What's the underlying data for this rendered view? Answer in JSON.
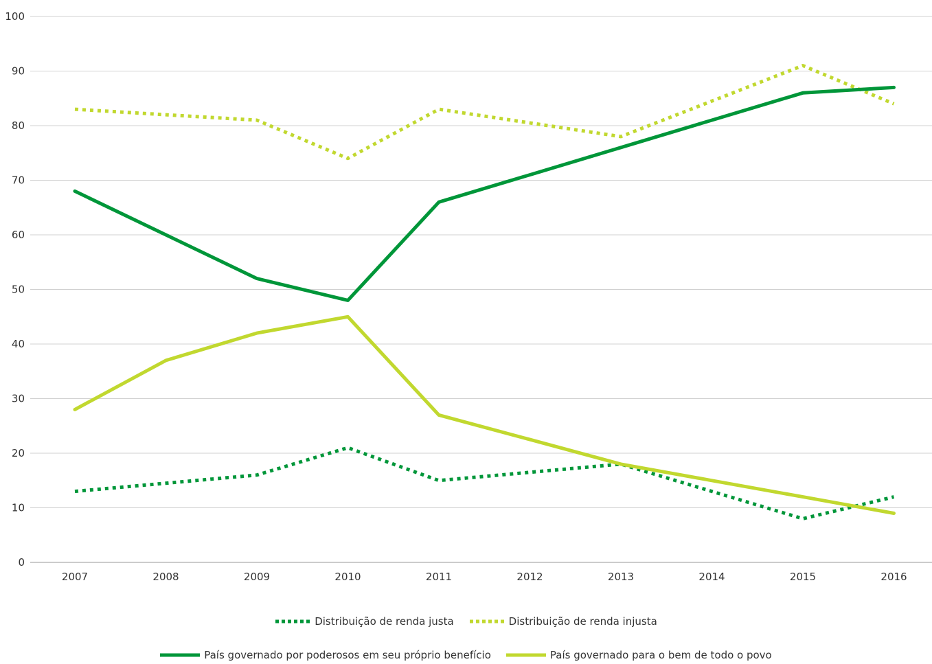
{
  "chart_data": {
    "type": "line",
    "title": "",
    "xlabel": "",
    "ylabel": "",
    "ylim": [
      0,
      100
    ],
    "yticks": [
      0,
      10,
      20,
      30,
      40,
      50,
      60,
      70,
      80,
      90,
      100
    ],
    "grid": "horizontal",
    "legend_position": "bottom",
    "x": [
      "2007",
      "2008",
      "2009",
      "2010",
      "2011",
      "2012",
      "2013",
      "2014",
      "2015",
      "2016"
    ],
    "series": [
      {
        "name": "Distribuição de renda justa",
        "color": "#009639",
        "style": "dotted",
        "values": [
          13,
          14.5,
          16,
          21,
          15,
          16.5,
          18,
          13,
          8,
          12
        ]
      },
      {
        "name": "Distribuição de renda injusta",
        "color": "#c1d82f",
        "style": "dotted",
        "values": [
          83,
          82,
          81,
          74,
          83,
          80.5,
          78,
          84.5,
          91,
          84
        ]
      },
      {
        "name": "País governado por poderosos em seu próprio benefício",
        "color": "#009639",
        "style": "solid",
        "values": [
          68,
          60,
          52,
          48,
          66,
          71,
          76,
          81,
          86,
          87
        ]
      },
      {
        "name": "País governado para o bem de todo o povo",
        "color": "#c1d82f",
        "style": "solid",
        "values": [
          28,
          37,
          42,
          45,
          27,
          22.5,
          18,
          15,
          12,
          9
        ]
      }
    ]
  }
}
